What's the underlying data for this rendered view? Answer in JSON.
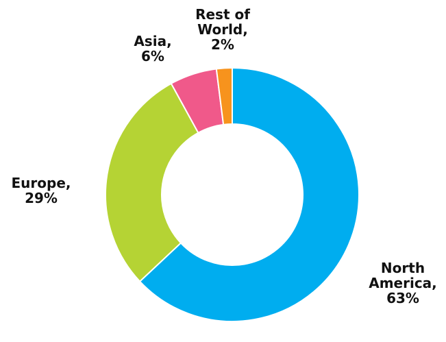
{
  "chart_data": {
    "type": "pie",
    "donut": true,
    "title": "",
    "series": [
      {
        "name": "North America",
        "value": 63,
        "color": "#00ADEF",
        "label_lines": [
          "North",
          "America,",
          "63%"
        ]
      },
      {
        "name": "Europe",
        "value": 29,
        "color": "#B5D334",
        "label_lines": [
          "Europe,",
          "29%"
        ]
      },
      {
        "name": "Asia",
        "value": 6,
        "color": "#F0598A",
        "label_lines": [
          "Asia,",
          "6%"
        ]
      },
      {
        "name": "Rest of World",
        "value": 2,
        "color": "#F7931D",
        "label_lines": [
          "Rest of",
          "World,",
          "2%"
        ]
      }
    ]
  }
}
